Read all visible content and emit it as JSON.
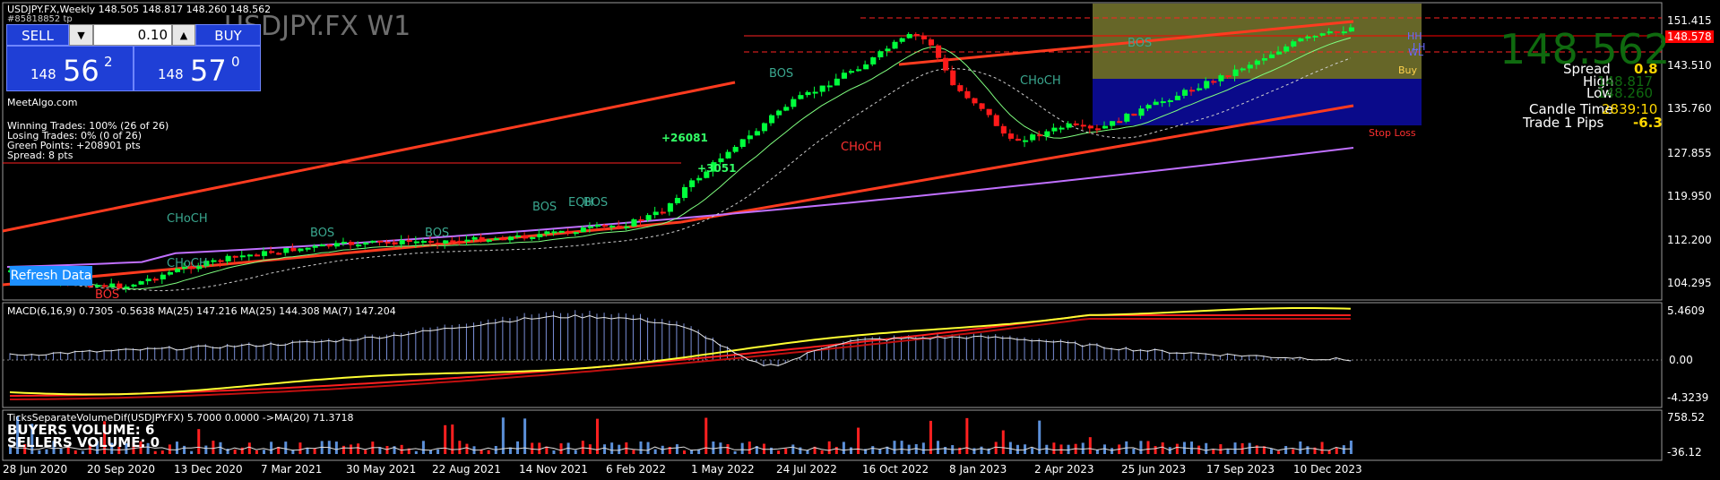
{
  "chart_header": {
    "symbol_line": "USDJPY.FX,Weekly  148.505 148.817 148.260 148.562",
    "account_id": "#85818852 tp",
    "watermark": "USDJPY.FX W1",
    "site": "MeetAlgo.com"
  },
  "trade_panel": {
    "sell_label": "SELL",
    "buy_label": "BUY",
    "lot_value": "0.10",
    "dec_symbol": "▼",
    "inc_symbol": "▲",
    "sell_quote": {
      "prefix": "148",
      "big": "56",
      "sup": "2"
    },
    "buy_quote": {
      "prefix": "148",
      "big": "57",
      "sup": "0"
    }
  },
  "stats": {
    "winning": "Winning Trades: 100% (26 of 26)",
    "losing": "Losing Trades: 0% (0 of 26)",
    "green_points": "Green Points: +208901 pts",
    "spread": "Spread: 8 pts"
  },
  "refresh_label": "Refresh Data",
  "info_panel": {
    "big_price": "148.562",
    "spread_label": "Spread",
    "spread_value": "0.8",
    "high_label": "High",
    "high_value": "148.817",
    "low_label": "Low",
    "low_value": "148.260",
    "candle_time_label": "Candle Time",
    "candle_time_value": "2839:10",
    "trade_pips_label": "Trade 1 Pips",
    "trade_pips_value": "-6.3"
  },
  "price_axis": {
    "ticks": [
      "151.415",
      "143.510",
      "135.760",
      "127.855",
      "119.950",
      "112.200",
      "104.295"
    ],
    "current_price_tag": "148.578"
  },
  "macd_panel": {
    "title": "MACD(6,16,9) 0.7305 -0.5638  MA(25) 147.216  MA(25) 144.308  MA(7) 147.204",
    "ticks": [
      "5.4609",
      "0.00",
      "-4.3239"
    ]
  },
  "volume_panel": {
    "title": "TicksSeparateVolumeDif(USDJPY.FX) 5.7000 0.0000  ->MA(20) 71.3718",
    "buyers": "BUYERS VOLUME: 6",
    "sellers": "SELLERS VOLUME: 0",
    "ticks": [
      "758.52",
      "-36.12"
    ]
  },
  "time_axis": [
    "28 Jun 2020",
    "20 Sep 2020",
    "13 Dec 2020",
    "7 Mar 2021",
    "30 May 2021",
    "22 Aug 2021",
    "14 Nov 2021",
    "6 Feb 2022",
    "1 May 2022",
    "24 Jul 2022",
    "16 Oct 2022",
    "8 Jan 2023",
    "2 Apr 2023",
    "25 Jun 2023",
    "17 Sep 2023",
    "10 Dec 2023"
  ],
  "annotations": {
    "bos": "BOS",
    "choch": "CHoCH",
    "eqh": "EQH",
    "plus1": "+26081",
    "plus2": "+3051",
    "buy": "Buy",
    "stop_loss": "Stop Loss",
    "tp_labels": [
      "HH",
      "LH",
      "WL"
    ]
  },
  "colors": {
    "bull": "#00ff3c",
    "bear": "#ff1a1a",
    "channel": "#ff3b1f",
    "ma_purple": "#c070ff",
    "structure_text": "#3aa78f",
    "panel_blue": "#1f3fd6",
    "zone_olive": "#6b6b2a",
    "zone_navy": "#0a0a8a"
  }
}
